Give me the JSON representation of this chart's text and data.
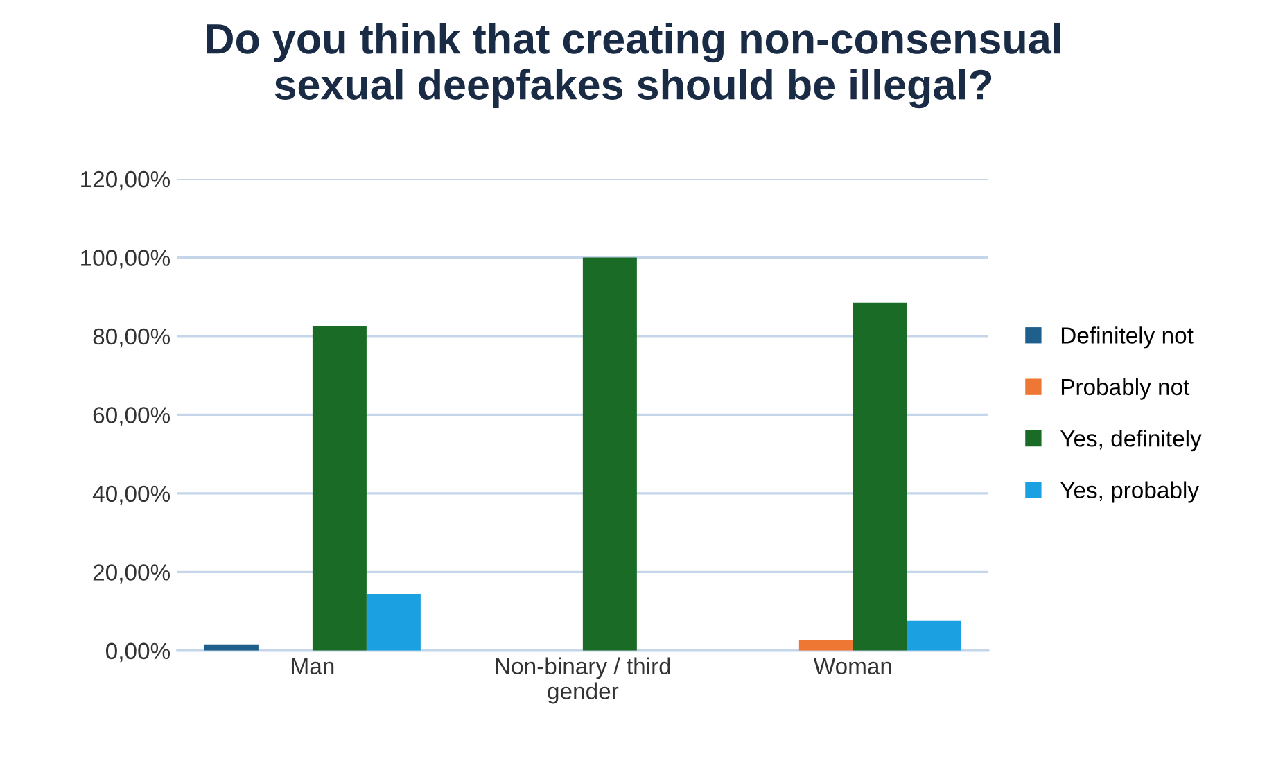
{
  "chart_data": {
    "type": "bar",
    "title": "Do you think that creating non-consensual\nsexual deepfakes should be illegal?",
    "categories": [
      "Man",
      "Non-binary / third\ngender",
      "Woman"
    ],
    "series": [
      {
        "name": "Definitely not",
        "color": "#1f5f8b",
        "values": [
          1.6,
          0,
          0
        ]
      },
      {
        "name": "Probably not",
        "color": "#ee7733",
        "values": [
          0,
          0,
          2.7
        ]
      },
      {
        "name": "Yes, definitely",
        "color": "#1a6b25",
        "values": [
          82.6,
          100,
          88.5
        ]
      },
      {
        "name": "Yes, probably",
        "color": "#1ba1e2",
        "values": [
          14.4,
          0,
          7.6
        ]
      }
    ],
    "ylim": [
      0,
      120
    ],
    "yticks": [
      {
        "value": 0,
        "label": "0,00%"
      },
      {
        "value": 20,
        "label": "20,00%"
      },
      {
        "value": 40,
        "label": "40,00%"
      },
      {
        "value": 60,
        "label": "60,00%"
      },
      {
        "value": 80,
        "label": "80,00%"
      },
      {
        "value": 100,
        "label": "100,00%"
      },
      {
        "value": 120,
        "label": "120,00%"
      }
    ],
    "grid": "y",
    "legend": "right"
  }
}
